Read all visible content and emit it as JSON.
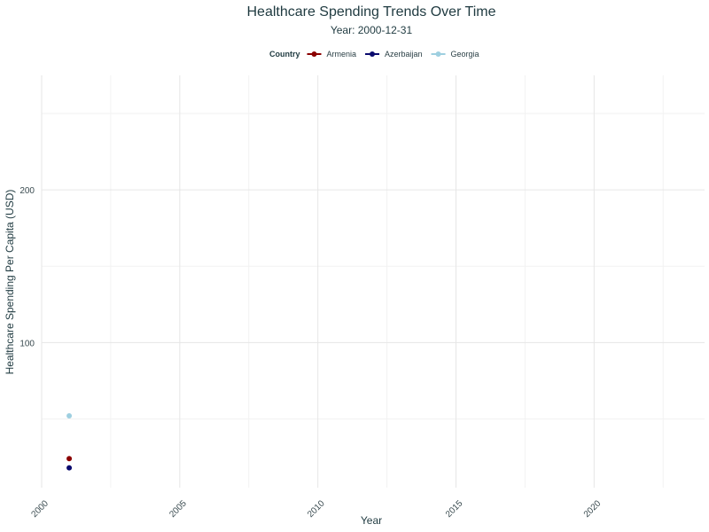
{
  "chart_data": {
    "type": "line",
    "title": "Healthcare Spending Trends Over Time",
    "subtitle": "Year: 2000-12-31",
    "xlabel": "Year",
    "ylabel": "Healthcare Spending Per Capita (USD)",
    "xlim": [
      2000,
      2024
    ],
    "ylim": [
      5,
      275
    ],
    "x_ticks": [
      2000,
      2005,
      2010,
      2015,
      2020
    ],
    "y_ticks": [
      100,
      200
    ],
    "grid": true,
    "legend": {
      "title": "Country",
      "placement": "top"
    },
    "series": [
      {
        "name": "Armenia",
        "color": "#8b0000",
        "points": [
          {
            "x": "2000-12-31",
            "y": 24
          }
        ]
      },
      {
        "name": "Azerbaijan",
        "color": "#0a0a6e",
        "points": [
          {
            "x": "2000-12-31",
            "y": 18
          }
        ]
      },
      {
        "name": "Georgia",
        "color": "#9ecfe0",
        "points": [
          {
            "x": "2000-12-31",
            "y": 52
          }
        ]
      }
    ]
  }
}
